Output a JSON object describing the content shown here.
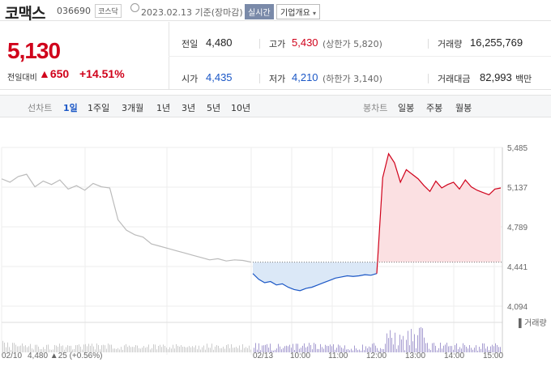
{
  "header": {
    "company_name": "코맥스",
    "stock_code": "036690",
    "market_badge": "코스닥",
    "date_text": "2023.02.13 기준(장마감)",
    "realtime_button": "실시간",
    "company_info_button": "기업개요"
  },
  "price": {
    "current": "5,130",
    "change_label": "전일대비",
    "change_value": "650",
    "change_pct": "+14.51%",
    "colors": {
      "up": "#d0021b",
      "down": "#1b57c6"
    }
  },
  "stats": {
    "prev_close": {
      "label": "전일",
      "value": "4,480"
    },
    "high": {
      "label": "고가",
      "value": "5,430",
      "sub": "(상한가 5,820)"
    },
    "volume": {
      "label": "거래량",
      "value": "16,255,769"
    },
    "open": {
      "label": "시가",
      "value": "4,435"
    },
    "low": {
      "label": "저가",
      "value": "4,210",
      "sub": "(하한가 3,140)"
    },
    "trade_value": {
      "label": "거래대금",
      "value": "82,993",
      "unit": "백만"
    }
  },
  "line_chart_tabs": {
    "heading": "선차트",
    "items": [
      "1일",
      "1주일",
      "3개월",
      "1년",
      "3년",
      "5년",
      "10년"
    ],
    "selected": "1일"
  },
  "candle_chart_tabs": {
    "heading": "봉차트",
    "items": [
      "일봉",
      "주봉",
      "월봉"
    ]
  },
  "chart_data": {
    "type": "line",
    "prev_close_line": 4480,
    "ylim": [
      4094,
      5485
    ],
    "y_ticks": [
      "5,485",
      "5,137",
      "4,789",
      "4,441",
      "4,094"
    ],
    "x_ticks": [
      "02/10",
      "02/13",
      "10:00",
      "11:00",
      "12:00",
      "13:00",
      "14:00",
      "15:00"
    ],
    "volume_label": "거래량",
    "footer": {
      "date": "02/10",
      "prev": "4,480",
      "change": "25",
      "pct": "(+0.56%)"
    },
    "series": [
      {
        "values": [
          5210,
          5180,
          5230,
          5250,
          5140,
          5190,
          5160,
          5200,
          5120,
          5150,
          5110,
          5170,
          5140,
          5130,
          4850,
          4760,
          4720,
          4700,
          4640,
          4620,
          4600,
          4580,
          4560,
          4540,
          4520,
          4500,
          4510,
          4490,
          4500,
          4495,
          4480
        ],
        "session": "02/10"
      },
      {
        "values": [
          4380,
          4330,
          4300,
          4310,
          4280,
          4290,
          4260,
          4240,
          4230,
          4250,
          4260,
          4280,
          4300,
          4320,
          4340,
          4350,
          4360,
          4355,
          4360,
          4370,
          4365,
          4380,
          5220,
          5430,
          5350,
          5180,
          5290,
          5250,
          5210,
          5150,
          5100,
          5190,
          5130,
          5160,
          5180,
          5120,
          5200,
          5140,
          5110,
          5090,
          5070,
          5120,
          5130
        ],
        "session": "02/13"
      }
    ],
    "grid": true
  }
}
